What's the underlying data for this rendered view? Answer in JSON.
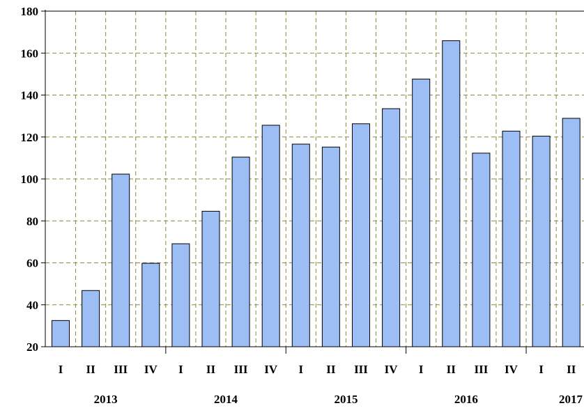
{
  "chart_data": {
    "type": "bar",
    "categories": [
      "I",
      "II",
      "III",
      "IV",
      "I",
      "II",
      "III",
      "IV",
      "I",
      "II",
      "III",
      "IV",
      "I",
      "II",
      "III",
      "IV",
      "I",
      "II"
    ],
    "years": [
      "2013",
      "2014",
      "2015",
      "2016",
      "2017"
    ],
    "values": [
      32.5,
      46.8,
      102.3,
      59.8,
      69.1,
      84.6,
      110.4,
      125.6,
      116.6,
      115.2,
      126.3,
      133.5,
      147.6,
      165.9,
      112.3,
      122.8,
      120.4,
      128.9
    ],
    "ylim": [
      20,
      180
    ],
    "yticks": [
      20,
      40,
      60,
      80,
      100,
      120,
      140,
      160,
      180
    ],
    "title": "",
    "xlabel": "",
    "ylabel": "",
    "grid": true,
    "bar_color": "#9dbdf5",
    "grid_color": "#8a8a3a"
  }
}
